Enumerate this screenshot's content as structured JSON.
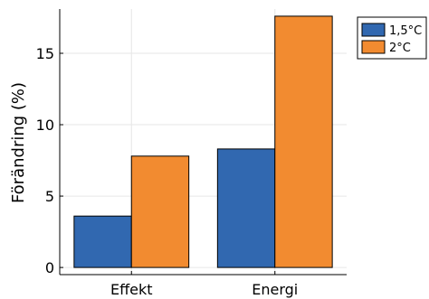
{
  "chart_data": {
    "type": "bar",
    "categories": [
      "Effekt",
      "Energi"
    ],
    "series": [
      {
        "name": "1,5°C",
        "values": [
          3.6,
          8.3
        ],
        "color": "#3168b0"
      },
      {
        "name": "2°C",
        "values": [
          7.8,
          17.6
        ],
        "color": "#f28b30"
      }
    ],
    "title": "",
    "xlabel": "",
    "ylabel": "Förändring (%)",
    "ylim": [
      -0.5,
      18.1
    ],
    "yticks": [
      0,
      5,
      10,
      15
    ],
    "grid": true,
    "legend_position": "top-right"
  }
}
